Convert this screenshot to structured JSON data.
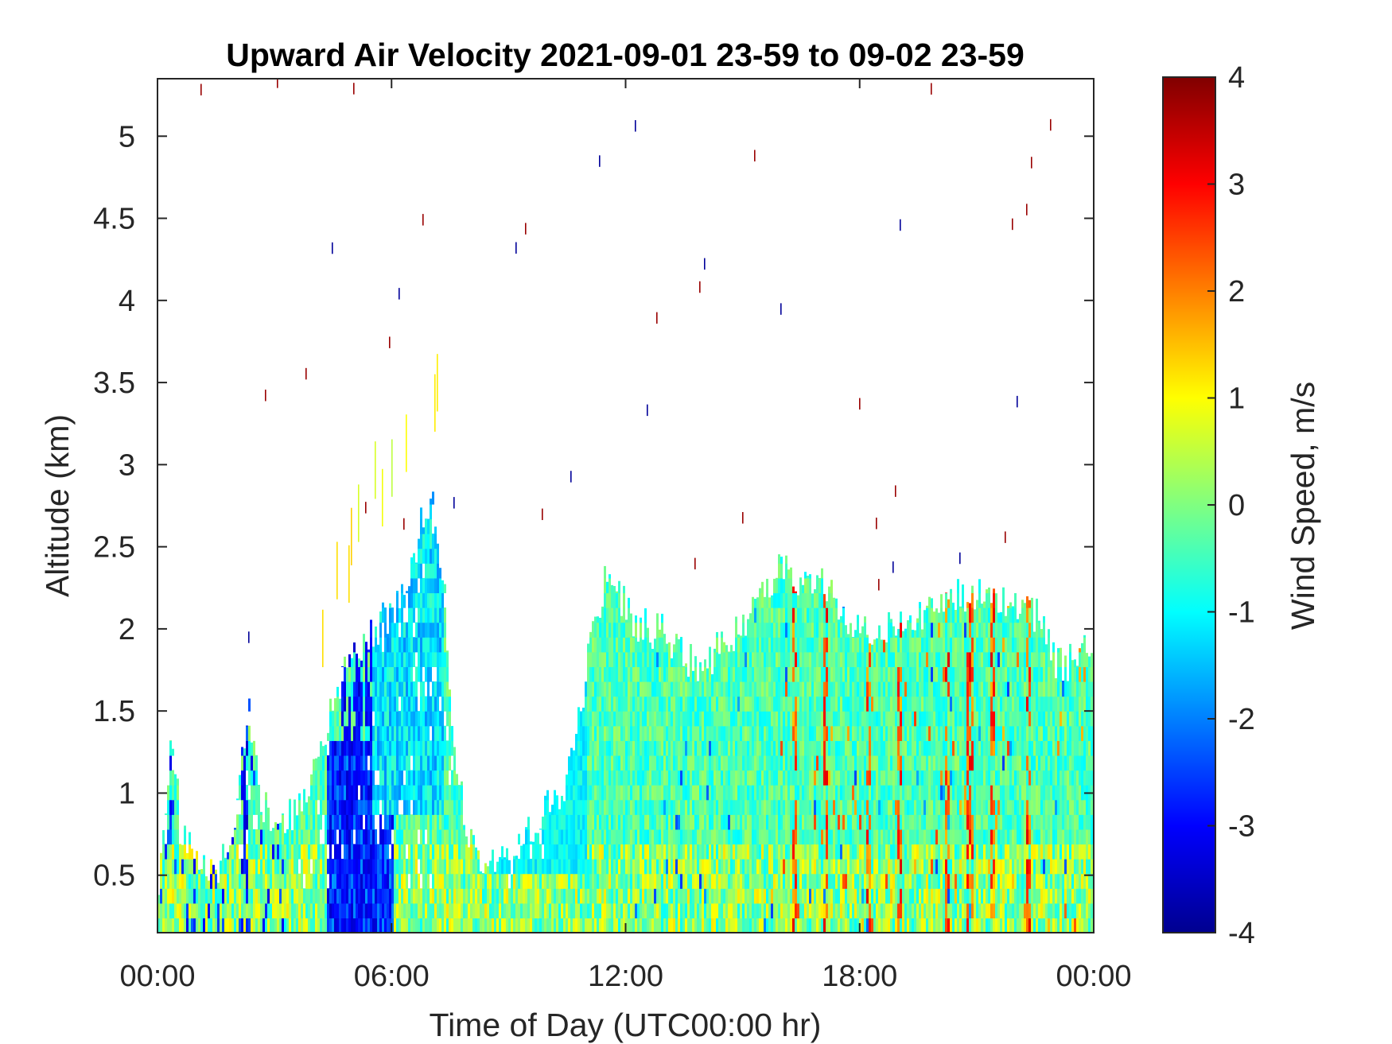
{
  "chart_data": {
    "type": "heatmap",
    "title": "Upward Air Velocity 2021-09-01 23-59 to 09-02 23-59",
    "xlabel": "Time of Day (UTC00:00 hr)",
    "ylabel": "Altitude (km)",
    "x_ticks": [
      "00:00",
      "06:00",
      "12:00",
      "18:00",
      "00:00"
    ],
    "x_tick_hours": [
      0,
      6,
      12,
      18,
      24
    ],
    "xlim_hours": [
      0,
      24
    ],
    "y_ticks": [
      "0.5",
      "1",
      "1.5",
      "2",
      "2.5",
      "3",
      "3.5",
      "4",
      "4.5",
      "5"
    ],
    "y_tick_values": [
      0.5,
      1,
      1.5,
      2,
      2.5,
      3,
      3.5,
      4,
      4.5,
      5
    ],
    "ylim_km": [
      0.15,
      5.35
    ],
    "colorbar": {
      "label": "Wind Speed, m/s",
      "ticks": [
        "4",
        "3",
        "2",
        "1",
        "0",
        "-1",
        "-2",
        "-3",
        "-4"
      ],
      "tick_values": [
        4,
        3,
        2,
        1,
        0,
        -1,
        -2,
        -3,
        -4
      ],
      "range": [
        -4,
        4
      ],
      "colormap": "jet"
    },
    "cloud_top_profile_km": {
      "hours": [
        0,
        0.3,
        0.6,
        1,
        1.5,
        2,
        2.3,
        2.6,
        3,
        3.5,
        4,
        4.5,
        5,
        5.5,
        6,
        6.5,
        6.8,
        7,
        7.3,
        7.6,
        8,
        8.5,
        9,
        9.5,
        10,
        10.3,
        10.6,
        11,
        11.5,
        12,
        12.5,
        13,
        13.5,
        14,
        14.5,
        15,
        15.5,
        16,
        16.5,
        17,
        17.5,
        18,
        18.5,
        19,
        19.5,
        20,
        20.5,
        21,
        21.5,
        22,
        22.5,
        23,
        23.5,
        24
      ],
      "top_km": [
        0.5,
        1.3,
        0.8,
        0.6,
        0.5,
        0.9,
        1.6,
        1.0,
        0.7,
        0.9,
        1.1,
        1.6,
        1.8,
        2.0,
        2.1,
        2.4,
        2.7,
        2.8,
        2.3,
        1.2,
        0.7,
        0.6,
        0.6,
        0.8,
        0.9,
        1.0,
        1.2,
        1.8,
        2.4,
        2.1,
        2.0,
        2.0,
        1.8,
        1.8,
        1.9,
        2.0,
        2.2,
        2.4,
        2.3,
        2.3,
        2.1,
        2.0,
        2.0,
        2.0,
        2.1,
        2.1,
        2.2,
        2.2,
        2.2,
        2.1,
        2.1,
        1.8,
        1.8,
        1.9
      ]
    },
    "stronger_updraft_hours": [
      16.3,
      17.1,
      18.2,
      19.0,
      20.2,
      20.8,
      21.4,
      22.3
    ],
    "stronger_downdraft_hours": [
      2.2,
      4.8,
      5.1,
      5.4
    ]
  }
}
